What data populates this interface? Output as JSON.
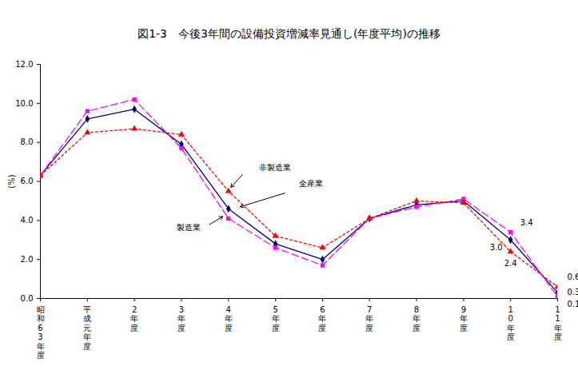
{
  "chart_data": {
    "type": "line",
    "title": "図1-3　今後3年間の設備投資増減率見通し(年度平均)の推移",
    "y_label": "(%)",
    "categories": [
      "昭和63年度",
      "平成元年度",
      "2年度",
      "3年度",
      "4年度",
      "5年度",
      "6年度",
      "7年度",
      "8年度",
      "9年度",
      "10年度",
      "11年度"
    ],
    "series": [
      {
        "name": "全産業",
        "color": "#000080",
        "marker": "diamond",
        "line_style": "solid",
        "values": [
          6.3,
          9.2,
          9.7,
          7.9,
          4.6,
          2.8,
          2.0,
          4.1,
          4.8,
          5.0,
          3.0,
          0.3
        ],
        "value_labels": [
          null,
          null,
          null,
          null,
          null,
          null,
          null,
          null,
          null,
          null,
          "3.0",
          "0.3"
        ]
      },
      {
        "name": "製造業",
        "color": "#ff00ff",
        "marker": "square",
        "line_style": "dashed",
        "values": [
          6.3,
          9.6,
          10.2,
          7.7,
          4.1,
          2.6,
          1.7,
          4.1,
          4.7,
          5.1,
          3.4,
          0.1
        ],
        "value_labels": [
          null,
          null,
          null,
          null,
          null,
          null,
          null,
          null,
          null,
          null,
          "3.4",
          "0.1"
        ]
      },
      {
        "name": "非製造業",
        "color": "#ff0000",
        "marker": "triangle",
        "line_style": "dotted",
        "values": [
          6.3,
          8.5,
          8.7,
          8.4,
          5.5,
          3.2,
          2.6,
          4.1,
          5.0,
          4.9,
          2.4,
          0.6
        ],
        "value_labels": [
          null,
          null,
          null,
          null,
          null,
          null,
          null,
          null,
          null,
          null,
          "2.4",
          "0.6"
        ]
      }
    ],
    "ylim": [
      0,
      12
    ],
    "yticks": [
      {
        "value": 0,
        "label": "0.0"
      },
      {
        "value": 2,
        "label": "2.0"
      },
      {
        "value": 4,
        "label": "4.0"
      },
      {
        "value": 6,
        "label": "6.0"
      },
      {
        "value": 8,
        "label": "8.0"
      },
      {
        "value": 10,
        "label": "10.0"
      },
      {
        "value": 12,
        "label": "12.0"
      }
    ],
    "grid": false,
    "legend": false
  }
}
